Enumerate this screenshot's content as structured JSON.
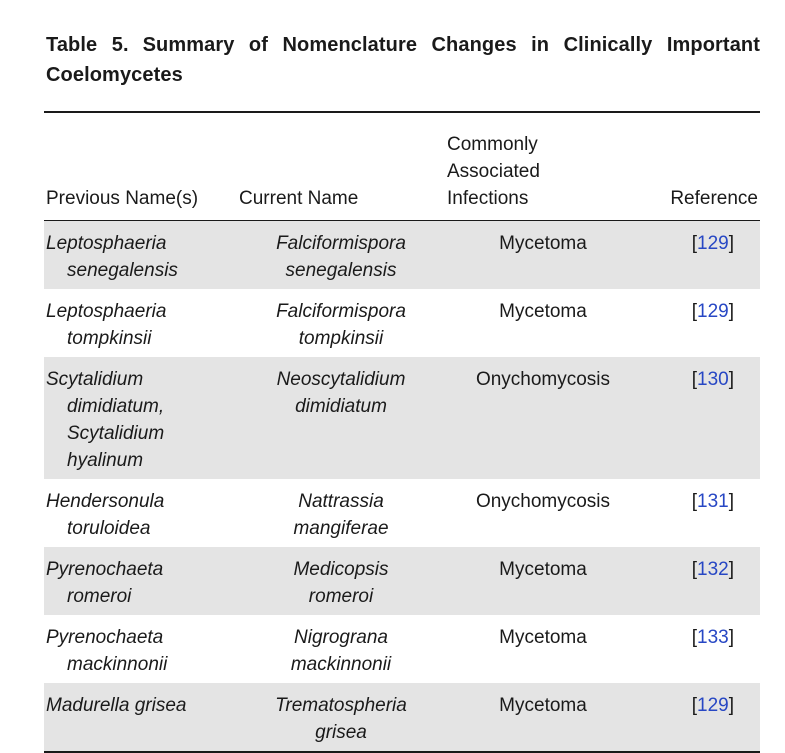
{
  "caption": {
    "label": "Table 5.",
    "title": "Summary of Nomenclature Changes in Clinically Important Coelomycetes"
  },
  "columns": {
    "previous": "Previous Name(s)",
    "current": "Current Name",
    "infections_line1": "Commonly",
    "infections_line2": "Associated",
    "infections_line3": "Infections",
    "reference": "Reference"
  },
  "rows": [
    {
      "previous": [
        "Leptosphaeria",
        "senegalensis"
      ],
      "current": [
        "Falciformispora",
        "senegalensis"
      ],
      "infection": "Mycetoma",
      "reference": "129"
    },
    {
      "previous": [
        "Leptosphaeria",
        "tompkinsii"
      ],
      "current": [
        "Falciformispora",
        "tompkinsii"
      ],
      "infection": "Mycetoma",
      "reference": "129"
    },
    {
      "previous": [
        "Scytalidium",
        "dimidiatum,",
        "Scytalidium",
        "hyalinum"
      ],
      "current": [
        "Neoscytalidium",
        "dimidiatum"
      ],
      "infection": "Onychomycosis",
      "reference": "130"
    },
    {
      "previous": [
        "Hendersonula",
        "toruloidea"
      ],
      "current": [
        "Nattrassia",
        "mangiferae"
      ],
      "infection": "Onychomycosis",
      "reference": "131"
    },
    {
      "previous": [
        "Pyrenochaeta",
        "romeroi"
      ],
      "current": [
        "Medicopsis",
        "romeroi"
      ],
      "infection": "Mycetoma",
      "reference": "132"
    },
    {
      "previous": [
        "Pyrenochaeta",
        "mackinnonii"
      ],
      "current": [
        "Nigrograna",
        "mackinnonii"
      ],
      "infection": "Mycetoma",
      "reference": "133"
    },
    {
      "previous": [
        "Madurella grisea"
      ],
      "current": [
        "Trematospheria",
        "grisea"
      ],
      "infection": "Mycetoma",
      "reference": "129"
    }
  ],
  "colors": {
    "row_shade": "#e4e4e4",
    "reference_link": "#2747c4",
    "text": "#1a1a1a"
  }
}
